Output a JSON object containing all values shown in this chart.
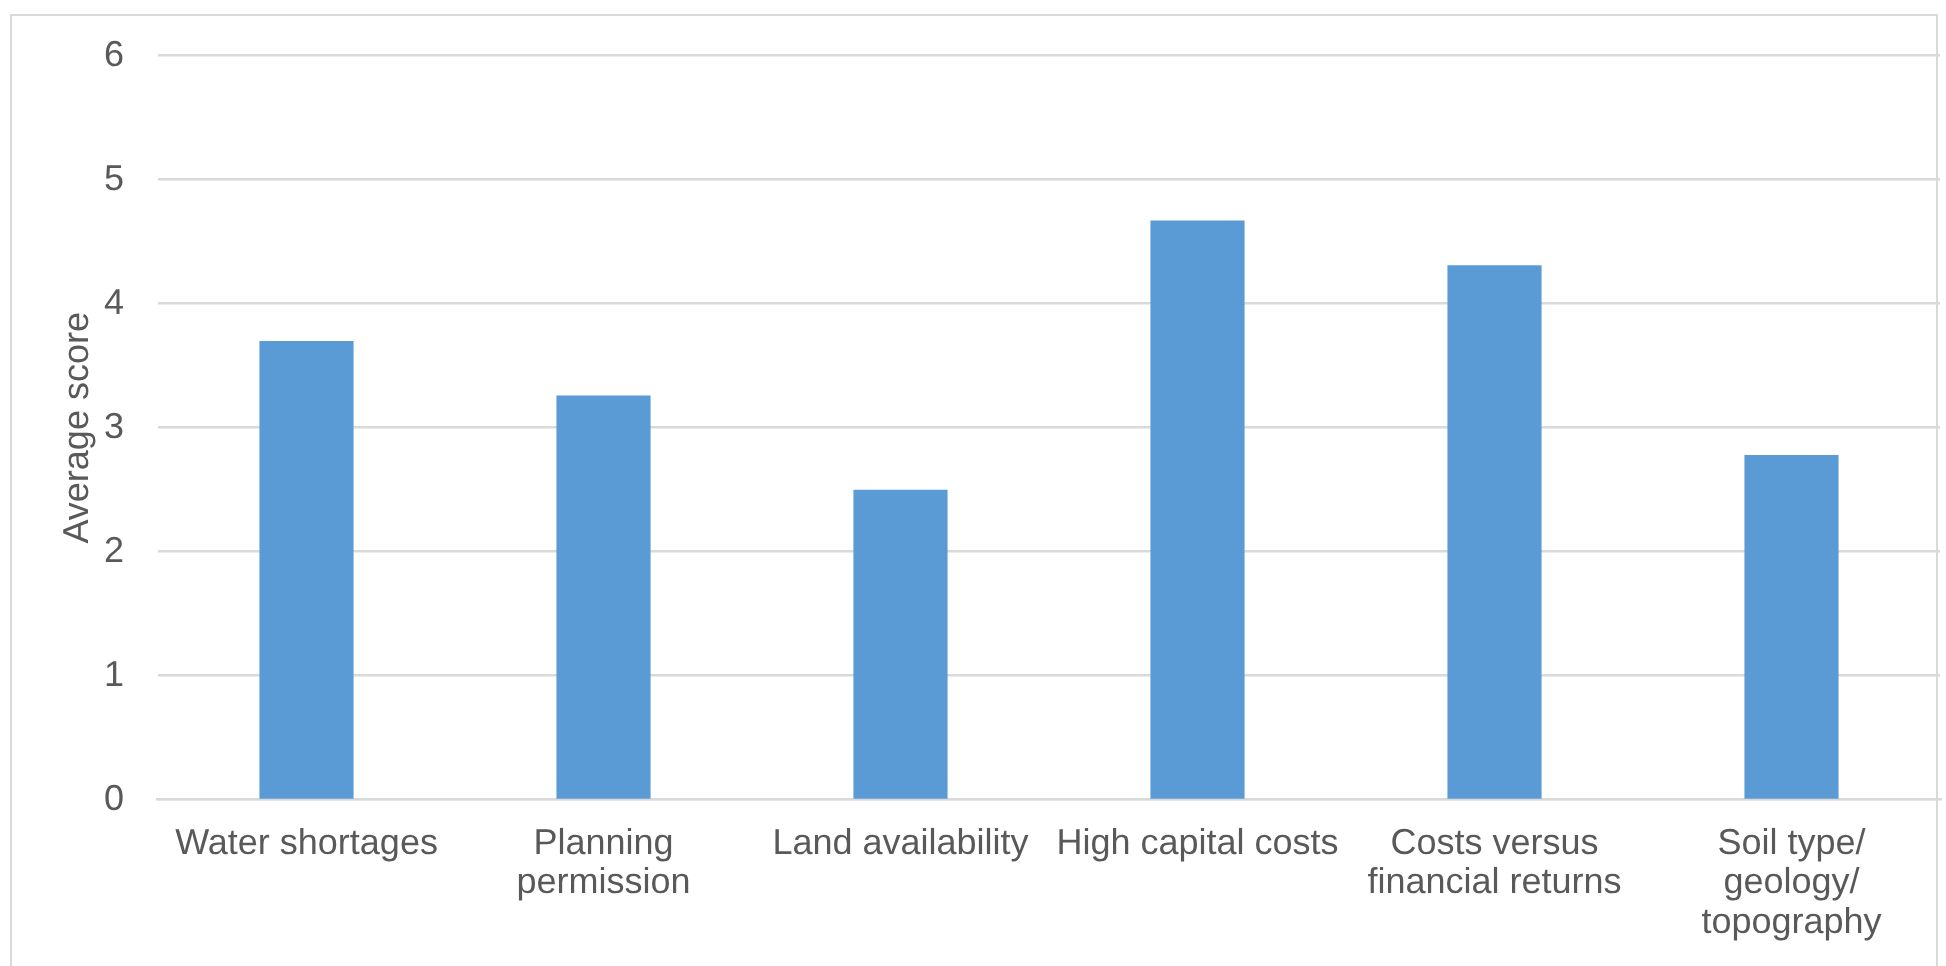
{
  "chart_data": {
    "type": "bar",
    "ylabel": "Average score",
    "categories": [
      "Water shortages",
      "Planning permission",
      "Land availability",
      "High capital costs",
      "Costs versus financial returns",
      "Soil type/ geology/ topography"
    ],
    "values": [
      3.7,
      3.26,
      2.5,
      4.67,
      4.31,
      2.78
    ],
    "color": "#5b9bd5",
    "ylim": [
      0,
      6
    ],
    "yticks": [
      0,
      1,
      2,
      3,
      4,
      5,
      6
    ],
    "grid": "y"
  }
}
